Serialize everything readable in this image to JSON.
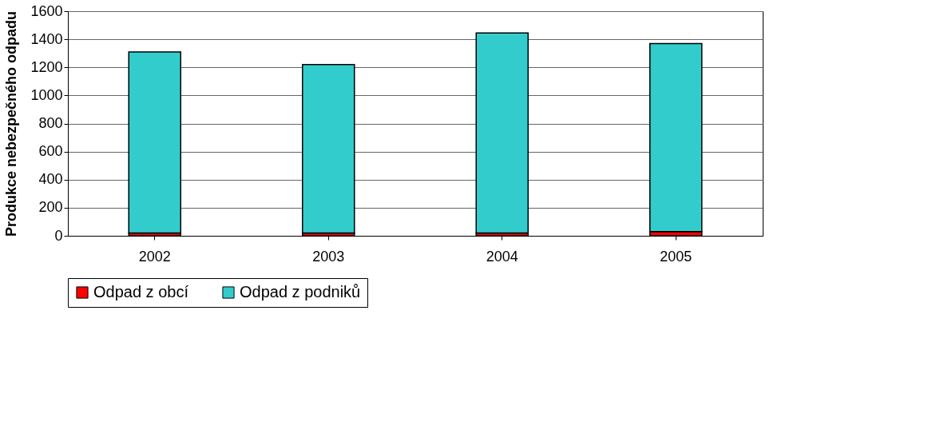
{
  "chart_data": {
    "type": "bar",
    "stacked": true,
    "ylabel": "Produkce nebezpečného odpadu",
    "categories": [
      "2002",
      "2003",
      "2004",
      "2005"
    ],
    "series": [
      {
        "name": "Odpad z obcí",
        "color": "#ff0000",
        "values": [
          20,
          20,
          20,
          30
        ]
      },
      {
        "name": "Odpad z podniků",
        "color": "#33cccc",
        "values": [
          1290,
          1200,
          1425,
          1340
        ]
      }
    ],
    "ylim": [
      0,
      1600
    ],
    "yticks": [
      0,
      200,
      400,
      600,
      800,
      1000,
      1200,
      1400,
      1600
    ],
    "grid": "y",
    "legend": "bottom"
  }
}
